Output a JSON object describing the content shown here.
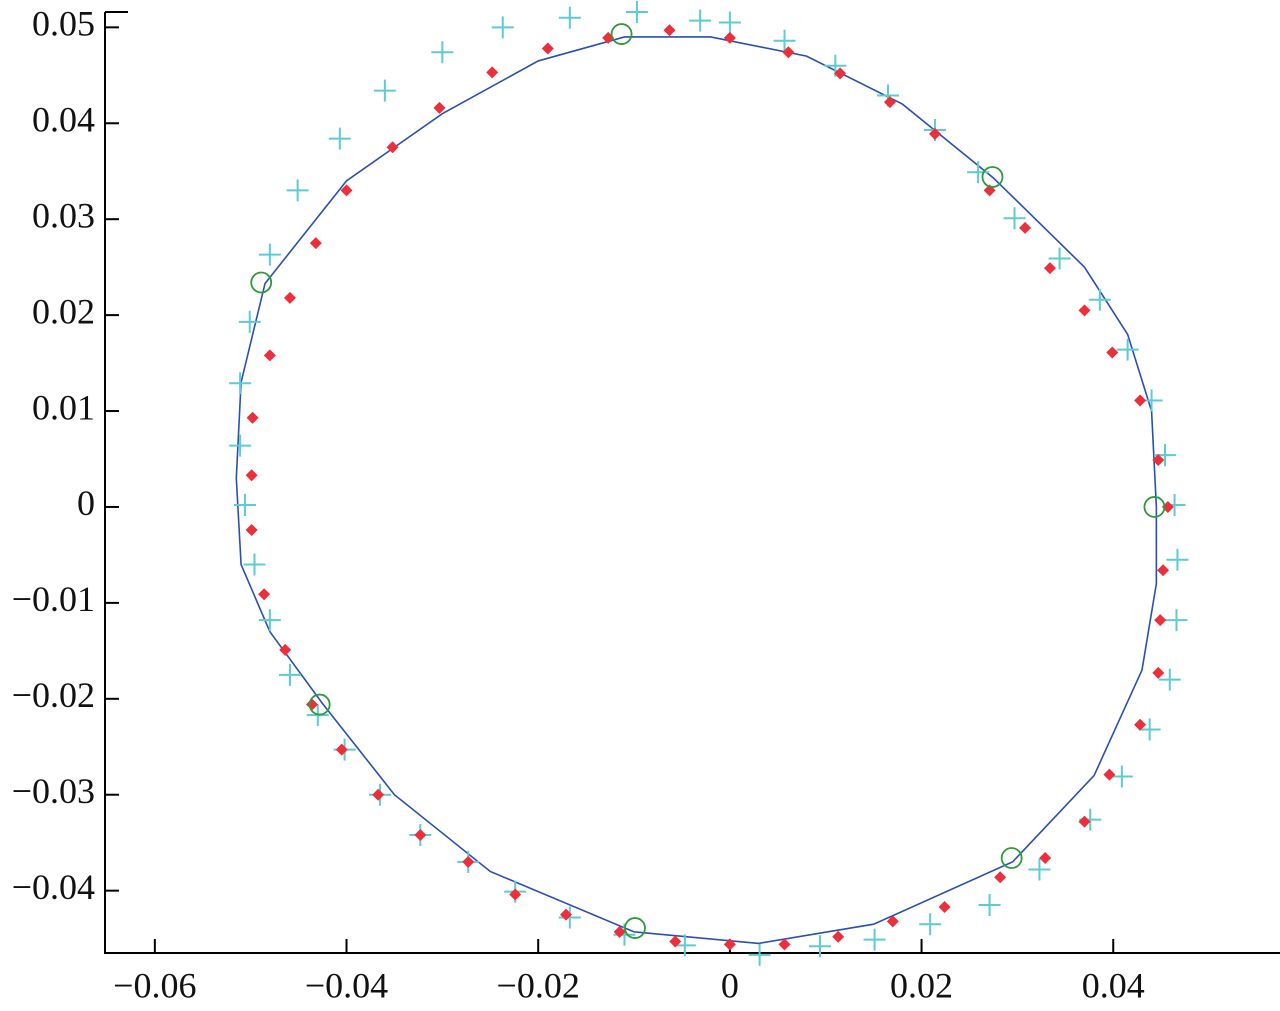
{
  "chart_data": {
    "type": "scatter",
    "xlim": [
      -0.0652,
      0.0574
    ],
    "ylim": [
      -0.0465,
      0.0516
    ],
    "xticks": [
      {
        "value": -0.06,
        "label": "−0.06"
      },
      {
        "value": -0.04,
        "label": "−0.04"
      },
      {
        "value": -0.02,
        "label": "−0.02"
      },
      0,
      0.02,
      0.04
    ],
    "yticks": [
      {
        "value": -0.04,
        "label": "−0.04"
      },
      {
        "value": -0.03,
        "label": "−0.03"
      },
      {
        "value": -0.02,
        "label": "−0.02"
      },
      {
        "value": -0.01,
        "label": "−0.01"
      },
      0,
      0.01,
      0.02,
      0.03,
      0.04,
      0.05
    ],
    "series": [
      {
        "marker": "line",
        "color": "#2a4fb2",
        "x": [
          0.0445,
          0.044,
          0.0415,
          0.037,
          0.0275,
          0.018,
          0.008,
          -0.002,
          -0.011,
          -0.02,
          -0.03,
          -0.04,
          -0.0485,
          -0.051,
          -0.0515,
          -0.051,
          -0.048,
          -0.0425,
          -0.035,
          -0.025,
          -0.01,
          0.003,
          0.015,
          0.0295,
          0.038,
          0.043,
          0.0445,
          0.0445
        ],
        "y": [
          0,
          0.01,
          0.018,
          0.025,
          0.0343,
          0.042,
          0.047,
          0.049,
          0.049,
          0.0465,
          0.041,
          0.034,
          0.0233,
          0.013,
          0.003,
          -0.006,
          -0.013,
          -0.0205,
          -0.03,
          -0.038,
          -0.0443,
          -0.0455,
          -0.0435,
          -0.037,
          -0.028,
          -0.017,
          -0.008,
          0
        ]
      },
      {
        "marker": "plus",
        "color": "#5ccbd3",
        "x": [
          -0.0031,
          -0.0097,
          -0.0167,
          -0.0237,
          -0.03,
          -0.036,
          -0.0407,
          -0.0451,
          -0.048,
          -0.0501,
          -0.0511,
          -0.0511,
          -0.0506,
          -0.0496,
          -0.048,
          -0.0459,
          -0.043,
          -0.0402,
          -0.0365,
          -0.0323,
          -0.0273,
          -0.0224,
          -0.0167,
          -0.011,
          -0.0047,
          0.0031,
          0.0094,
          0.0151,
          0.0209,
          0.0271,
          0.0323,
          0.0376,
          0.0409,
          0.0438,
          0.0459,
          0.0466,
          0.0467,
          0.0464,
          0.0454,
          0.044,
          0.0415,
          0.0386,
          0.0344,
          0.0297,
          0.0259,
          0.0214,
          0.0165,
          0.011,
          0.0057,
          0
        ],
        "y": [
          0.0507,
          0.0516,
          0.051,
          0.05,
          0.0474,
          0.0434,
          0.0384,
          0.033,
          0.0263,
          0.0193,
          0.0129,
          0.0064,
          0.0002,
          -0.006,
          -0.0118,
          -0.0175,
          -0.0217,
          -0.0253,
          -0.03,
          -0.0342,
          -0.037,
          -0.0401,
          -0.0428,
          -0.0446,
          -0.0457,
          -0.0467,
          -0.0458,
          -0.0451,
          -0.0435,
          -0.0415,
          -0.0378,
          -0.0326,
          -0.0281,
          -0.0232,
          -0.018,
          -0.0118,
          -0.0055,
          0.0002,
          0.0054,
          0.0111,
          0.0164,
          0.0216,
          0.0259,
          0.0301,
          0.0349,
          0.0393,
          0.0429,
          0.046,
          0.0486,
          0.0505
        ]
      },
      {
        "marker": "dot",
        "color": "#ec2f3a",
        "x": [
          -0.0063,
          0,
          0.0061,
          0.0115,
          0.0167,
          0.0214,
          0.0271,
          0.0308,
          0.0334,
          0.037,
          0.0399,
          0.0428,
          0.0447,
          0.0457,
          0.0452,
          0.0449,
          0.0447,
          0.0428,
          0.0396,
          0.037,
          0.0329,
          0.0282,
          0.0224,
          0.017,
          0.0113,
          0.0057,
          0,
          -0.0057,
          -0.0115,
          -0.0171,
          -0.0224,
          -0.0273,
          -0.0323,
          -0.0367,
          -0.0405,
          -0.0436,
          -0.0464,
          -0.0486,
          -0.0499,
          -0.0499,
          -0.0498,
          -0.048,
          -0.0459,
          -0.0432,
          -0.04,
          -0.0352,
          -0.0303,
          -0.0248,
          -0.019,
          -0.0127
        ],
        "y": [
          0.0497,
          0.0489,
          0.0474,
          0.0452,
          0.0422,
          0.0389,
          0.033,
          0.0291,
          0.0249,
          0.0205,
          0.0161,
          0.0111,
          0.0049,
          0,
          -0.0066,
          -0.0118,
          -0.0173,
          -0.0227,
          -0.0279,
          -0.0328,
          -0.0366,
          -0.0386,
          -0.0417,
          -0.0432,
          -0.0448,
          -0.0456,
          -0.0456,
          -0.0453,
          -0.0443,
          -0.0425,
          -0.0404,
          -0.037,
          -0.0342,
          -0.03,
          -0.0253,
          -0.0206,
          -0.0149,
          -0.0091,
          -0.0024,
          0.0033,
          0.0093,
          0.0158,
          0.0218,
          0.0275,
          0.033,
          0.0375,
          0.0416,
          0.0453,
          0.0478,
          0.0489
        ]
      },
      {
        "marker": "circle",
        "color": "#2e9a3a",
        "x": [
          -0.0113,
          0.0274,
          0.0443,
          0.0294,
          -0.0099,
          -0.0428,
          -0.0489
        ],
        "y": [
          0.0493,
          0.0344,
          0,
          -0.0366,
          -0.0439,
          -0.0206,
          0.0234
        ]
      }
    ]
  }
}
